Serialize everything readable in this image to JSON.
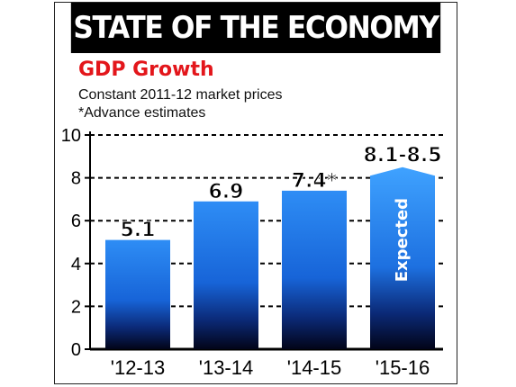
{
  "banner": "STATE OF THE ECONOMY",
  "chart_data": {
    "type": "bar",
    "title": "GDP Growth",
    "subtitle_lines": [
      "Constant 2011-12 market prices",
      "*Advance estimates"
    ],
    "categories": [
      "'12-13",
      "'13-14",
      "'14-15",
      "'15-16"
    ],
    "values": [
      5.1,
      6.9,
      7.4,
      8.5
    ],
    "value_labels": [
      "5.1",
      "6.9",
      "7.4*",
      "8.1-8.5"
    ],
    "range_low": 8.1,
    "annotations": [
      {
        "category": "'15-16",
        "text": "Expected"
      }
    ],
    "ylim": [
      0,
      10
    ],
    "yticks": [
      0,
      2,
      4,
      6,
      8,
      10
    ],
    "grid": true,
    "colors": {
      "bar_top": "#2e8df5",
      "bar_bottom": "#020418",
      "projected_top": "#3fa2ff",
      "grid": "#000000"
    }
  }
}
